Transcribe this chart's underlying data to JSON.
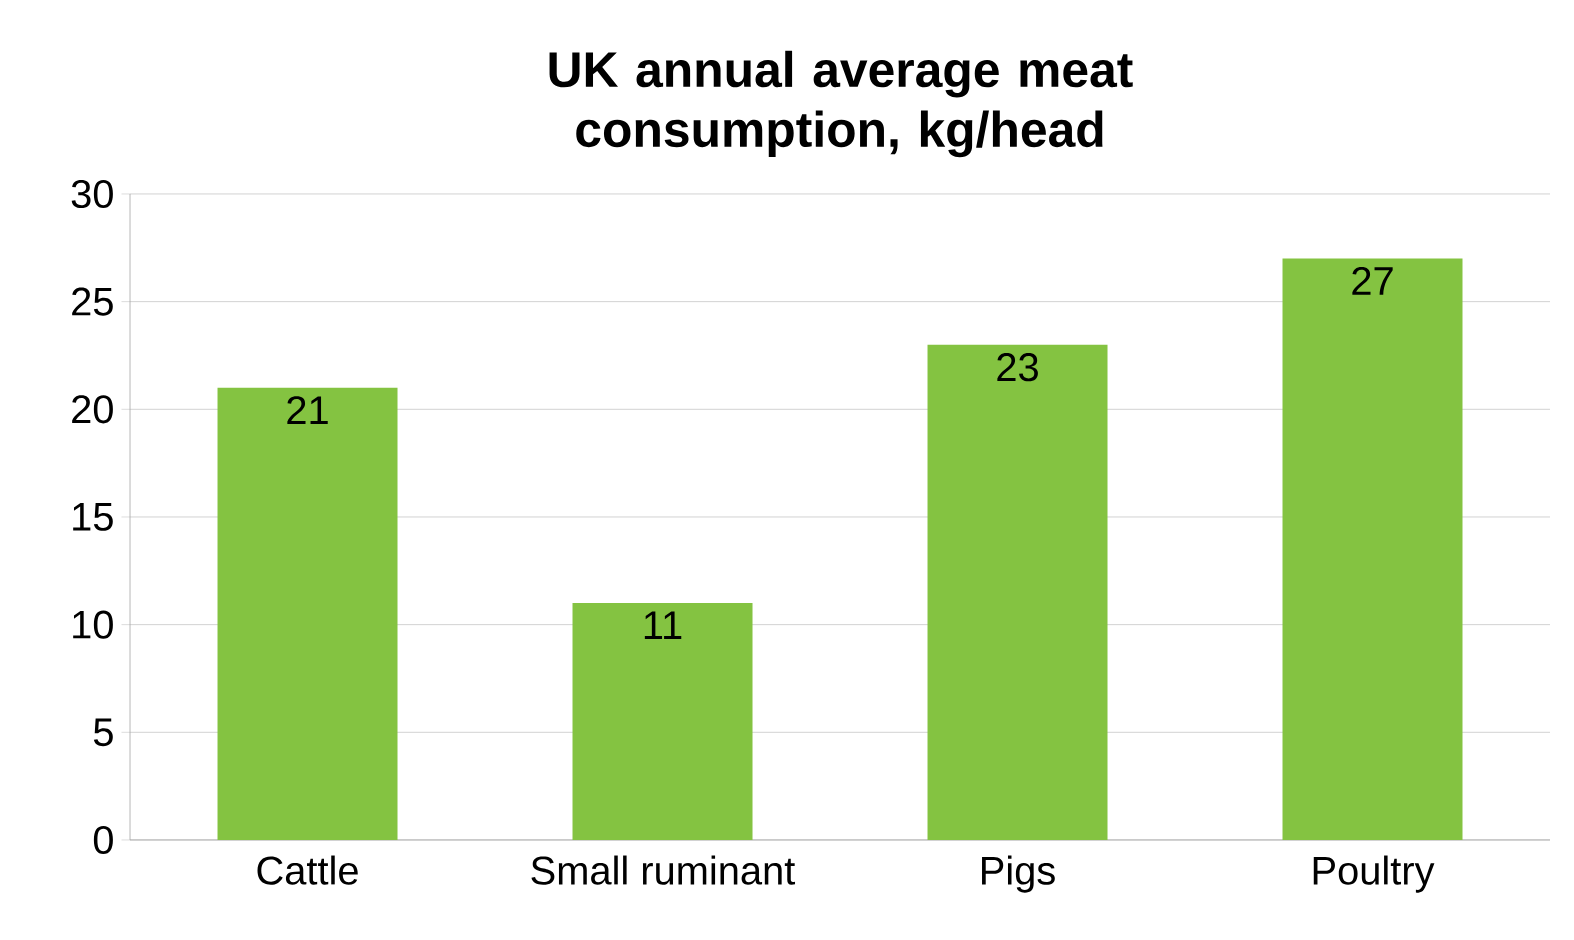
{
  "chart_data": {
    "type": "bar",
    "title": "UK annual average meat consumption, kg/head",
    "categories": [
      "Cattle",
      "Small ruminant",
      "Pigs",
      "Poultry"
    ],
    "values": [
      21,
      11,
      23,
      27
    ],
    "color": "#84c341",
    "ylim": [
      0,
      30
    ],
    "yticks": [
      0,
      5,
      10,
      15,
      20,
      25,
      30
    ],
    "grid": "y",
    "data_labels": true
  }
}
